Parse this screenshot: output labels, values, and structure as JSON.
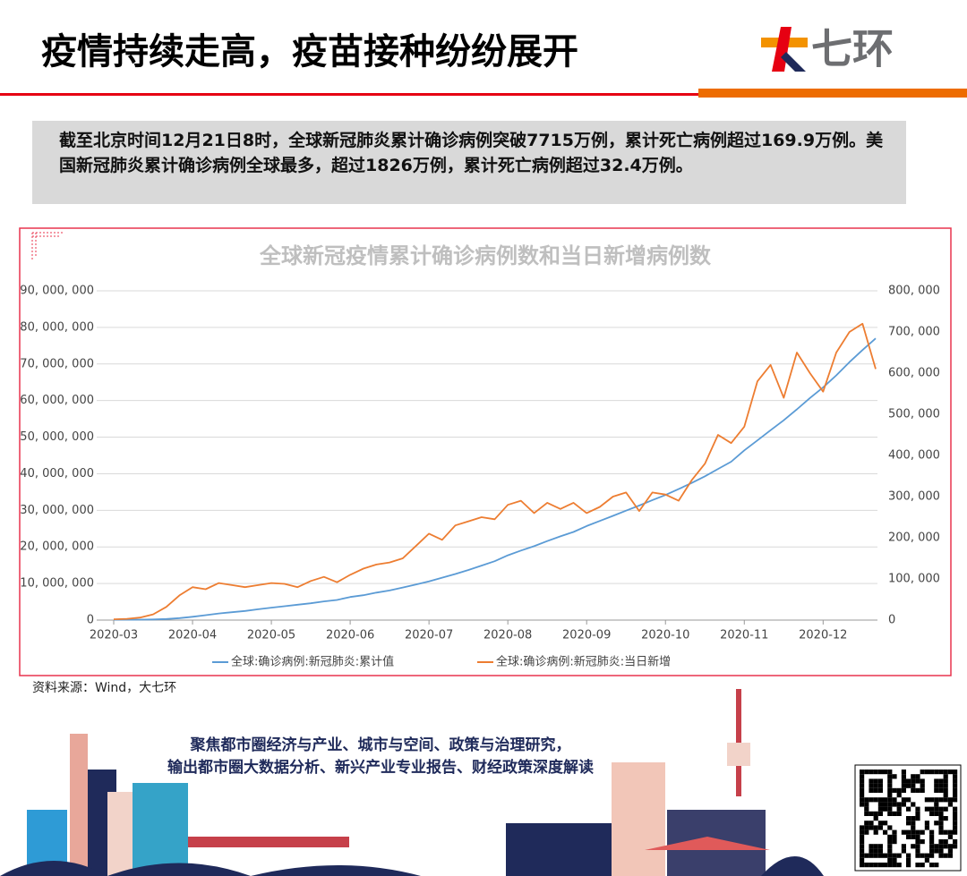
{
  "header": {
    "title": "疫情持续走高，疫苗接种纷纷展开",
    "logo": "七环"
  },
  "summary": "截至北京时间12月21日8时，全球新冠肺炎累计确诊病例突破7715万例，累计死亡病例超过169.9万例。美国新冠肺炎累计确诊病例全球最多，超过1826万例，累计死亡病例超过32.4万例。",
  "chart_data": {
    "type": "line",
    "title": "全球新冠疫情累计确诊病例数和当日新增病例数",
    "categories": [
      "2020-03",
      null,
      null,
      null,
      null,
      null,
      "2020-04",
      null,
      null,
      null,
      null,
      null,
      "2020-05",
      null,
      null,
      null,
      null,
      null,
      "2020-06",
      null,
      null,
      null,
      null,
      null,
      "2020-07",
      null,
      null,
      null,
      null,
      null,
      "2020-08",
      null,
      null,
      null,
      null,
      null,
      "2020-09",
      null,
      null,
      null,
      null,
      null,
      "2020-10",
      null,
      null,
      null,
      null,
      null,
      "2020-11",
      null,
      null,
      null,
      null,
      null,
      "2020-12",
      null,
      null,
      null,
      null
    ],
    "series": [
      {
        "name": "全球:确诊病例:新冠肺炎:累计值",
        "color": "#5b9bd5",
        "values": [
          88000,
          100000,
          125000,
          180000,
          300000,
          530000,
          900000,
          1350000,
          1800000,
          2150000,
          2500000,
          2950000,
          3400000,
          3800000,
          4200000,
          4600000,
          5100000,
          5500000,
          6300000,
          6800000,
          7500000,
          8100000,
          8900000,
          9700000,
          10600000,
          11600000,
          12600000,
          13700000,
          14900000,
          16100000,
          17700000,
          19000000,
          20200000,
          21600000,
          22900000,
          24100000,
          25700000,
          27100000,
          28500000,
          29900000,
          31300000,
          32800000,
          34200000,
          35800000,
          37500000,
          39300000,
          41300000,
          43300000,
          46400000,
          49100000,
          51900000,
          54600000,
          57600000,
          60700000,
          63600000,
          66900000,
          70500000,
          73800000,
          77000000
        ]
      },
      {
        "name": "全球:确诊病例:新冠肺炎:当日新增",
        "color": "#ed7d31",
        "axis": "y2",
        "values": [
          2000,
          3000,
          6000,
          14000,
          32000,
          60000,
          80000,
          75000,
          90000,
          85000,
          80000,
          85000,
          90000,
          88000,
          80000,
          95000,
          105000,
          92000,
          110000,
          125000,
          135000,
          140000,
          150000,
          180000,
          210000,
          195000,
          230000,
          240000,
          250000,
          245000,
          280000,
          290000,
          260000,
          285000,
          270000,
          285000,
          260000,
          275000,
          300000,
          310000,
          265000,
          310000,
          305000,
          290000,
          340000,
          380000,
          450000,
          430000,
          470000,
          580000,
          620000,
          540000,
          650000,
          600000,
          555000,
          650000,
          700000,
          720000,
          610000
        ]
      }
    ],
    "ylim": [
      0,
      90000000
    ],
    "yticks": [
      0,
      {
        "value": 10000000,
        "label": "10, 000, 000"
      },
      {
        "value": 20000000,
        "label": "20, 000, 000"
      },
      {
        "value": 30000000,
        "label": "30, 000, 000"
      },
      {
        "value": 40000000,
        "label": "40, 000, 000"
      },
      {
        "value": 50000000,
        "label": "50, 000, 000"
      },
      {
        "value": 60000000,
        "label": "60, 000, 000"
      },
      {
        "value": 70000000,
        "label": "70, 000, 000"
      },
      {
        "value": 80000000,
        "label": "80, 000, 000"
      },
      {
        "value": 90000000,
        "label": "90, 000, 000"
      }
    ],
    "y2lim": [
      0,
      800000
    ],
    "y2ticks": [
      0,
      {
        "value": 100000,
        "label": "100, 000"
      },
      {
        "value": 200000,
        "label": "200, 000"
      },
      {
        "value": 300000,
        "label": "300, 000"
      },
      {
        "value": 400000,
        "label": "400, 000"
      },
      {
        "value": 500000,
        "label": "500, 000"
      },
      {
        "value": 600000,
        "label": "600, 000"
      },
      {
        "value": 700000,
        "label": "700, 000"
      },
      {
        "value": 800000,
        "label": "800, 000"
      }
    ],
    "grid": true,
    "legend": "bottom",
    "source": "资料来源：Wind，大七环"
  },
  "footer": {
    "line1": "聚焦都市圈经济与产业、城市与空间、政策与治理研究，",
    "line2": "输出都市圈大数据分析、新兴产业专业报告、财经政策深度解读"
  }
}
